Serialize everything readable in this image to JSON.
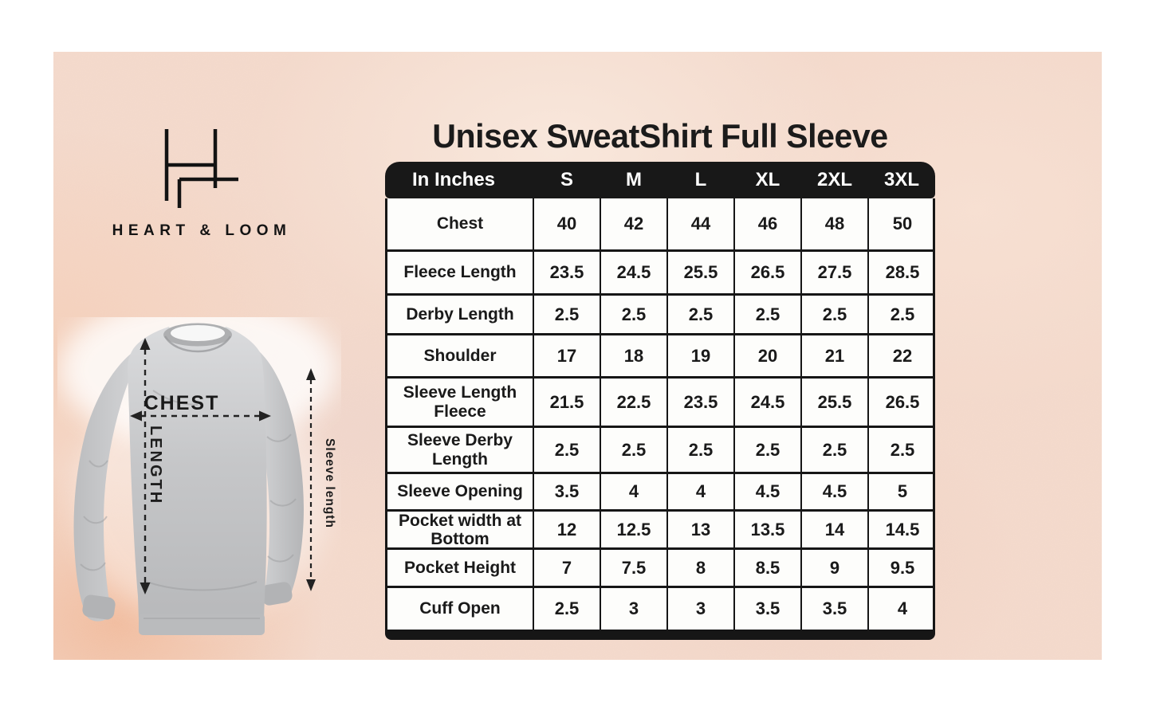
{
  "brand": {
    "name": "HEART & LOOM"
  },
  "title": "Unisex SweatShirt Full Sleeve",
  "size_chart": {
    "unit_label": "In Inches",
    "sizes": [
      "S",
      "M",
      "L",
      "XL",
      "2XL",
      "3XL"
    ],
    "rows": [
      {
        "label": "Chest",
        "values": [
          "40",
          "42",
          "44",
          "46",
          "48",
          "50"
        ]
      },
      {
        "label": "Fleece Length",
        "values": [
          "23.5",
          "24.5",
          "25.5",
          "26.5",
          "27.5",
          "28.5"
        ]
      },
      {
        "label": "Derby Length",
        "values": [
          "2.5",
          "2.5",
          "2.5",
          "2.5",
          "2.5",
          "2.5"
        ]
      },
      {
        "label": "Shoulder",
        "values": [
          "17",
          "18",
          "19",
          "20",
          "21",
          "22"
        ]
      },
      {
        "label": "Sleeve Length Fleece",
        "values": [
          "21.5",
          "22.5",
          "23.5",
          "24.5",
          "25.5",
          "26.5"
        ]
      },
      {
        "label": "Sleeve Derby Length",
        "values": [
          "2.5",
          "2.5",
          "2.5",
          "2.5",
          "2.5",
          "2.5"
        ]
      },
      {
        "label": "Sleeve Opening",
        "values": [
          "3.5",
          "4",
          "4",
          "4.5",
          "4.5",
          "5"
        ]
      },
      {
        "label": "Pocket width at Bottom",
        "values": [
          "12",
          "12.5",
          "13",
          "13.5",
          "14",
          "14.5"
        ]
      },
      {
        "label": "Pocket Height",
        "values": [
          "7",
          "7.5",
          "8",
          "8.5",
          "9",
          "9.5"
        ]
      },
      {
        "label": "Cuff Open",
        "values": [
          "2.5",
          "3",
          "3",
          "3.5",
          "3.5",
          "4"
        ]
      }
    ]
  },
  "diagram": {
    "labels": {
      "chest": "CHEST",
      "length": "LENGTH",
      "sleeve_length": "Sleeve length"
    }
  },
  "colors": {
    "page_bg": "#ffffff",
    "panel_pink": "#f3d8ca",
    "table_black": "#161616",
    "table_white": "#fdfdfb",
    "text_black": "#1a1a1a",
    "shirt_gray": "#c6c7c9"
  }
}
